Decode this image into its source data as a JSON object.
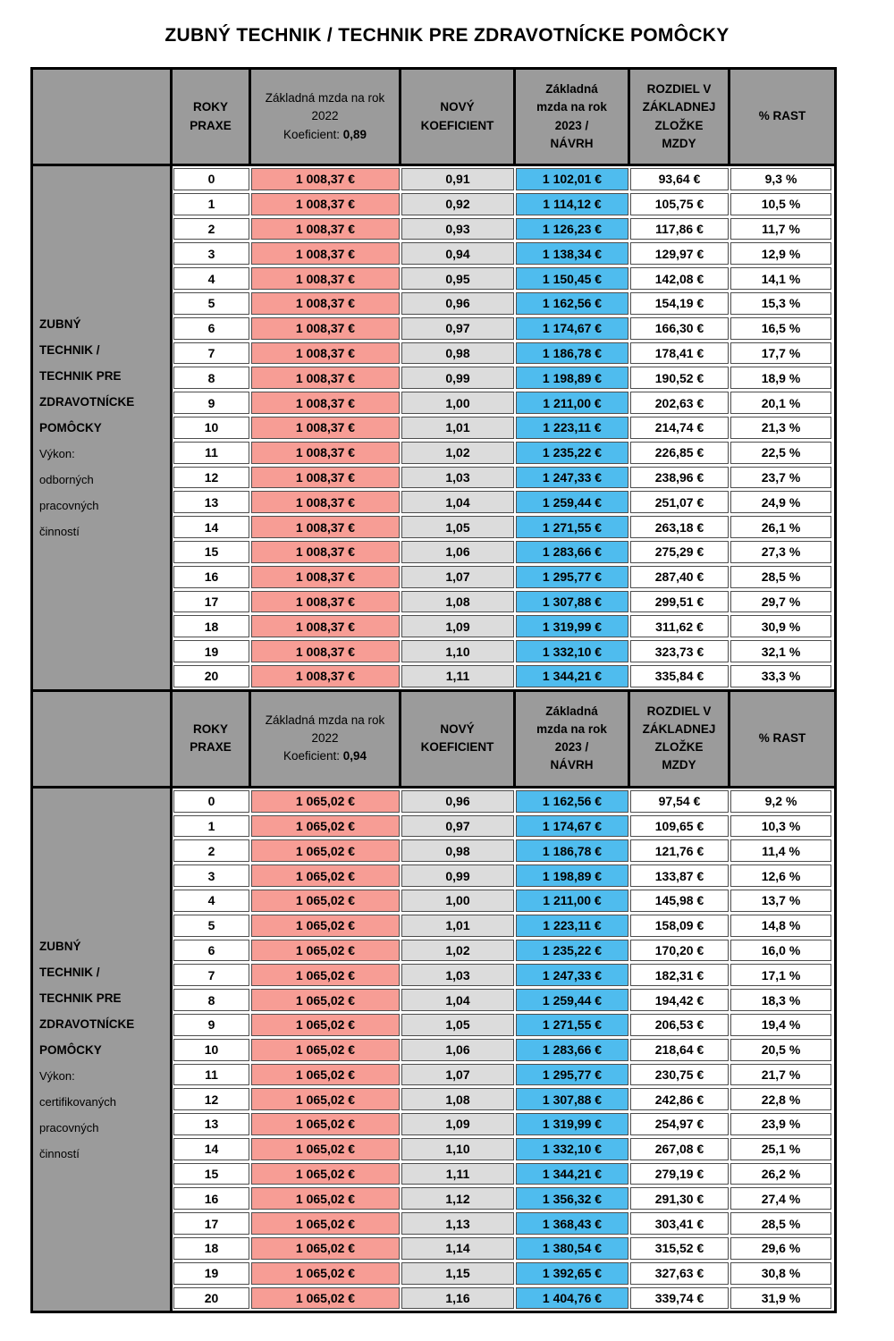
{
  "title": "ZUBNÝ TECHNIK / TECHNIK PRE ZDRAVOTNÍCKE POMÔCKY",
  "colors": {
    "header_bg": "#9b9b9b",
    "label_bg": "#9b9b9b",
    "salary_2022_bg": "#f79d95",
    "coefficient_bg": "#dcdcdc",
    "salary_2023_bg": "#4fbcee",
    "border": "#000000"
  },
  "sections": [
    {
      "row_label": {
        "bold_lines": [
          "ZUBNÝ",
          "TECHNIK /",
          "TECHNIK PRE",
          "ZDRAVOTNÍCKE",
          "POMÔCKY"
        ],
        "regular_lines": [
          "Výkon:",
          "odborných",
          "pracovných",
          "činností"
        ]
      },
      "header": {
        "roky_lines": [
          "ROKY",
          "PRAXE"
        ],
        "salary2022_line": "Základná mzda na rok 2022",
        "koeficient_label": "Koeficient:",
        "koeficient_value": "0,89",
        "novy_lines": [
          "NOVÝ",
          "KOEFICIENT"
        ],
        "salary2023_lines": [
          "Základná",
          "mzda na rok",
          "2023  /",
          "NÁVRH"
        ],
        "rozdiel_lines": [
          "ROZDIEL V",
          "ZÁKLADNEJ",
          "ZLOŽKE",
          "MZDY"
        ],
        "rast": "% RAST"
      },
      "rows": [
        [
          "0",
          "1 008,37 €",
          "0,91",
          "1 102,01 €",
          "93,64 €",
          "9,3 %"
        ],
        [
          "1",
          "1 008,37 €",
          "0,92",
          "1 114,12 €",
          "105,75 €",
          "10,5 %"
        ],
        [
          "2",
          "1 008,37 €",
          "0,93",
          "1 126,23 €",
          "117,86 €",
          "11,7 %"
        ],
        [
          "3",
          "1 008,37 €",
          "0,94",
          "1 138,34 €",
          "129,97 €",
          "12,9 %"
        ],
        [
          "4",
          "1 008,37 €",
          "0,95",
          "1 150,45 €",
          "142,08 €",
          "14,1 %"
        ],
        [
          "5",
          "1 008,37 €",
          "0,96",
          "1 162,56 €",
          "154,19 €",
          "15,3 %"
        ],
        [
          "6",
          "1 008,37 €",
          "0,97",
          "1 174,67 €",
          "166,30 €",
          "16,5 %"
        ],
        [
          "7",
          "1 008,37 €",
          "0,98",
          "1 186,78 €",
          "178,41 €",
          "17,7 %"
        ],
        [
          "8",
          "1 008,37 €",
          "0,99",
          "1 198,89 €",
          "190,52 €",
          "18,9 %"
        ],
        [
          "9",
          "1 008,37 €",
          "1,00",
          "1 211,00 €",
          "202,63 €",
          "20,1 %"
        ],
        [
          "10",
          "1 008,37 €",
          "1,01",
          "1 223,11 €",
          "214,74 €",
          "21,3 %"
        ],
        [
          "11",
          "1 008,37 €",
          "1,02",
          "1 235,22 €",
          "226,85 €",
          "22,5 %"
        ],
        [
          "12",
          "1 008,37 €",
          "1,03",
          "1 247,33 €",
          "238,96 €",
          "23,7 %"
        ],
        [
          "13",
          "1 008,37 €",
          "1,04",
          "1 259,44 €",
          "251,07 €",
          "24,9 %"
        ],
        [
          "14",
          "1 008,37 €",
          "1,05",
          "1 271,55 €",
          "263,18 €",
          "26,1 %"
        ],
        [
          "15",
          "1 008,37 €",
          "1,06",
          "1 283,66 €",
          "275,29 €",
          "27,3 %"
        ],
        [
          "16",
          "1 008,37 €",
          "1,07",
          "1 295,77 €",
          "287,40 €",
          "28,5 %"
        ],
        [
          "17",
          "1 008,37 €",
          "1,08",
          "1 307,88 €",
          "299,51 €",
          "29,7 %"
        ],
        [
          "18",
          "1 008,37 €",
          "1,09",
          "1 319,99 €",
          "311,62 €",
          "30,9 %"
        ],
        [
          "19",
          "1 008,37 €",
          "1,10",
          "1 332,10 €",
          "323,73 €",
          "32,1 %"
        ],
        [
          "20",
          "1 008,37 €",
          "1,11",
          "1 344,21 €",
          "335,84 €",
          "33,3 %"
        ]
      ]
    },
    {
      "row_label": {
        "bold_lines": [
          "ZUBNÝ",
          "TECHNIK /",
          "TECHNIK PRE",
          "ZDRAVOTNÍCKE",
          "POMÔCKY"
        ],
        "regular_lines": [
          "Výkon:",
          "certifikovaných",
          "pracovných",
          "činností"
        ]
      },
      "header": {
        "roky_lines": [
          "ROKY",
          "PRAXE"
        ],
        "salary2022_line": "Základná mzda na rok 2022",
        "koeficient_label": "Koeficient:",
        "koeficient_value": "0,94",
        "novy_lines": [
          "NOVÝ",
          "KOEFICIENT"
        ],
        "salary2023_lines": [
          "Základná",
          "mzda na rok",
          "2023  /",
          "NÁVRH"
        ],
        "rozdiel_lines": [
          "ROZDIEL V",
          "ZÁKLADNEJ",
          "ZLOŽKE",
          "MZDY"
        ],
        "rast": "% RAST"
      },
      "rows": [
        [
          "0",
          "1 065,02 €",
          "0,96",
          "1 162,56 €",
          "97,54 €",
          "9,2 %"
        ],
        [
          "1",
          "1 065,02 €",
          "0,97",
          "1 174,67 €",
          "109,65 €",
          "10,3 %"
        ],
        [
          "2",
          "1 065,02 €",
          "0,98",
          "1 186,78 €",
          "121,76 €",
          "11,4 %"
        ],
        [
          "3",
          "1 065,02 €",
          "0,99",
          "1 198,89 €",
          "133,87 €",
          "12,6 %"
        ],
        [
          "4",
          "1 065,02 €",
          "1,00",
          "1 211,00 €",
          "145,98 €",
          "13,7 %"
        ],
        [
          "5",
          "1 065,02 €",
          "1,01",
          "1 223,11 €",
          "158,09 €",
          "14,8 %"
        ],
        [
          "6",
          "1 065,02 €",
          "1,02",
          "1 235,22 €",
          "170,20 €",
          "16,0 %"
        ],
        [
          "7",
          "1 065,02 €",
          "1,03",
          "1 247,33 €",
          "182,31 €",
          "17,1 %"
        ],
        [
          "8",
          "1 065,02 €",
          "1,04",
          "1 259,44 €",
          "194,42 €",
          "18,3 %"
        ],
        [
          "9",
          "1 065,02 €",
          "1,05",
          "1 271,55 €",
          "206,53 €",
          "19,4 %"
        ],
        [
          "10",
          "1 065,02 €",
          "1,06",
          "1 283,66 €",
          "218,64 €",
          "20,5 %"
        ],
        [
          "11",
          "1 065,02 €",
          "1,07",
          "1 295,77 €",
          "230,75 €",
          "21,7 %"
        ],
        [
          "12",
          "1 065,02 €",
          "1,08",
          "1 307,88 €",
          "242,86 €",
          "22,8 %"
        ],
        [
          "13",
          "1 065,02 €",
          "1,09",
          "1 319,99 €",
          "254,97 €",
          "23,9 %"
        ],
        [
          "14",
          "1 065,02 €",
          "1,10",
          "1 332,10 €",
          "267,08 €",
          "25,1 %"
        ],
        [
          "15",
          "1 065,02 €",
          "1,11",
          "1 344,21 €",
          "279,19 €",
          "26,2 %"
        ],
        [
          "16",
          "1 065,02 €",
          "1,12",
          "1 356,32 €",
          "291,30 €",
          "27,4 %"
        ],
        [
          "17",
          "1 065,02 €",
          "1,13",
          "1 368,43 €",
          "303,41 €",
          "28,5 %"
        ],
        [
          "18",
          "1 065,02 €",
          "1,14",
          "1 380,54 €",
          "315,52 €",
          "29,6 %"
        ],
        [
          "19",
          "1 065,02 €",
          "1,15",
          "1 392,65 €",
          "327,63 €",
          "30,8 %"
        ],
        [
          "20",
          "1 065,02 €",
          "1,16",
          "1 404,76 €",
          "339,74 €",
          "31,9 %"
        ]
      ]
    }
  ]
}
